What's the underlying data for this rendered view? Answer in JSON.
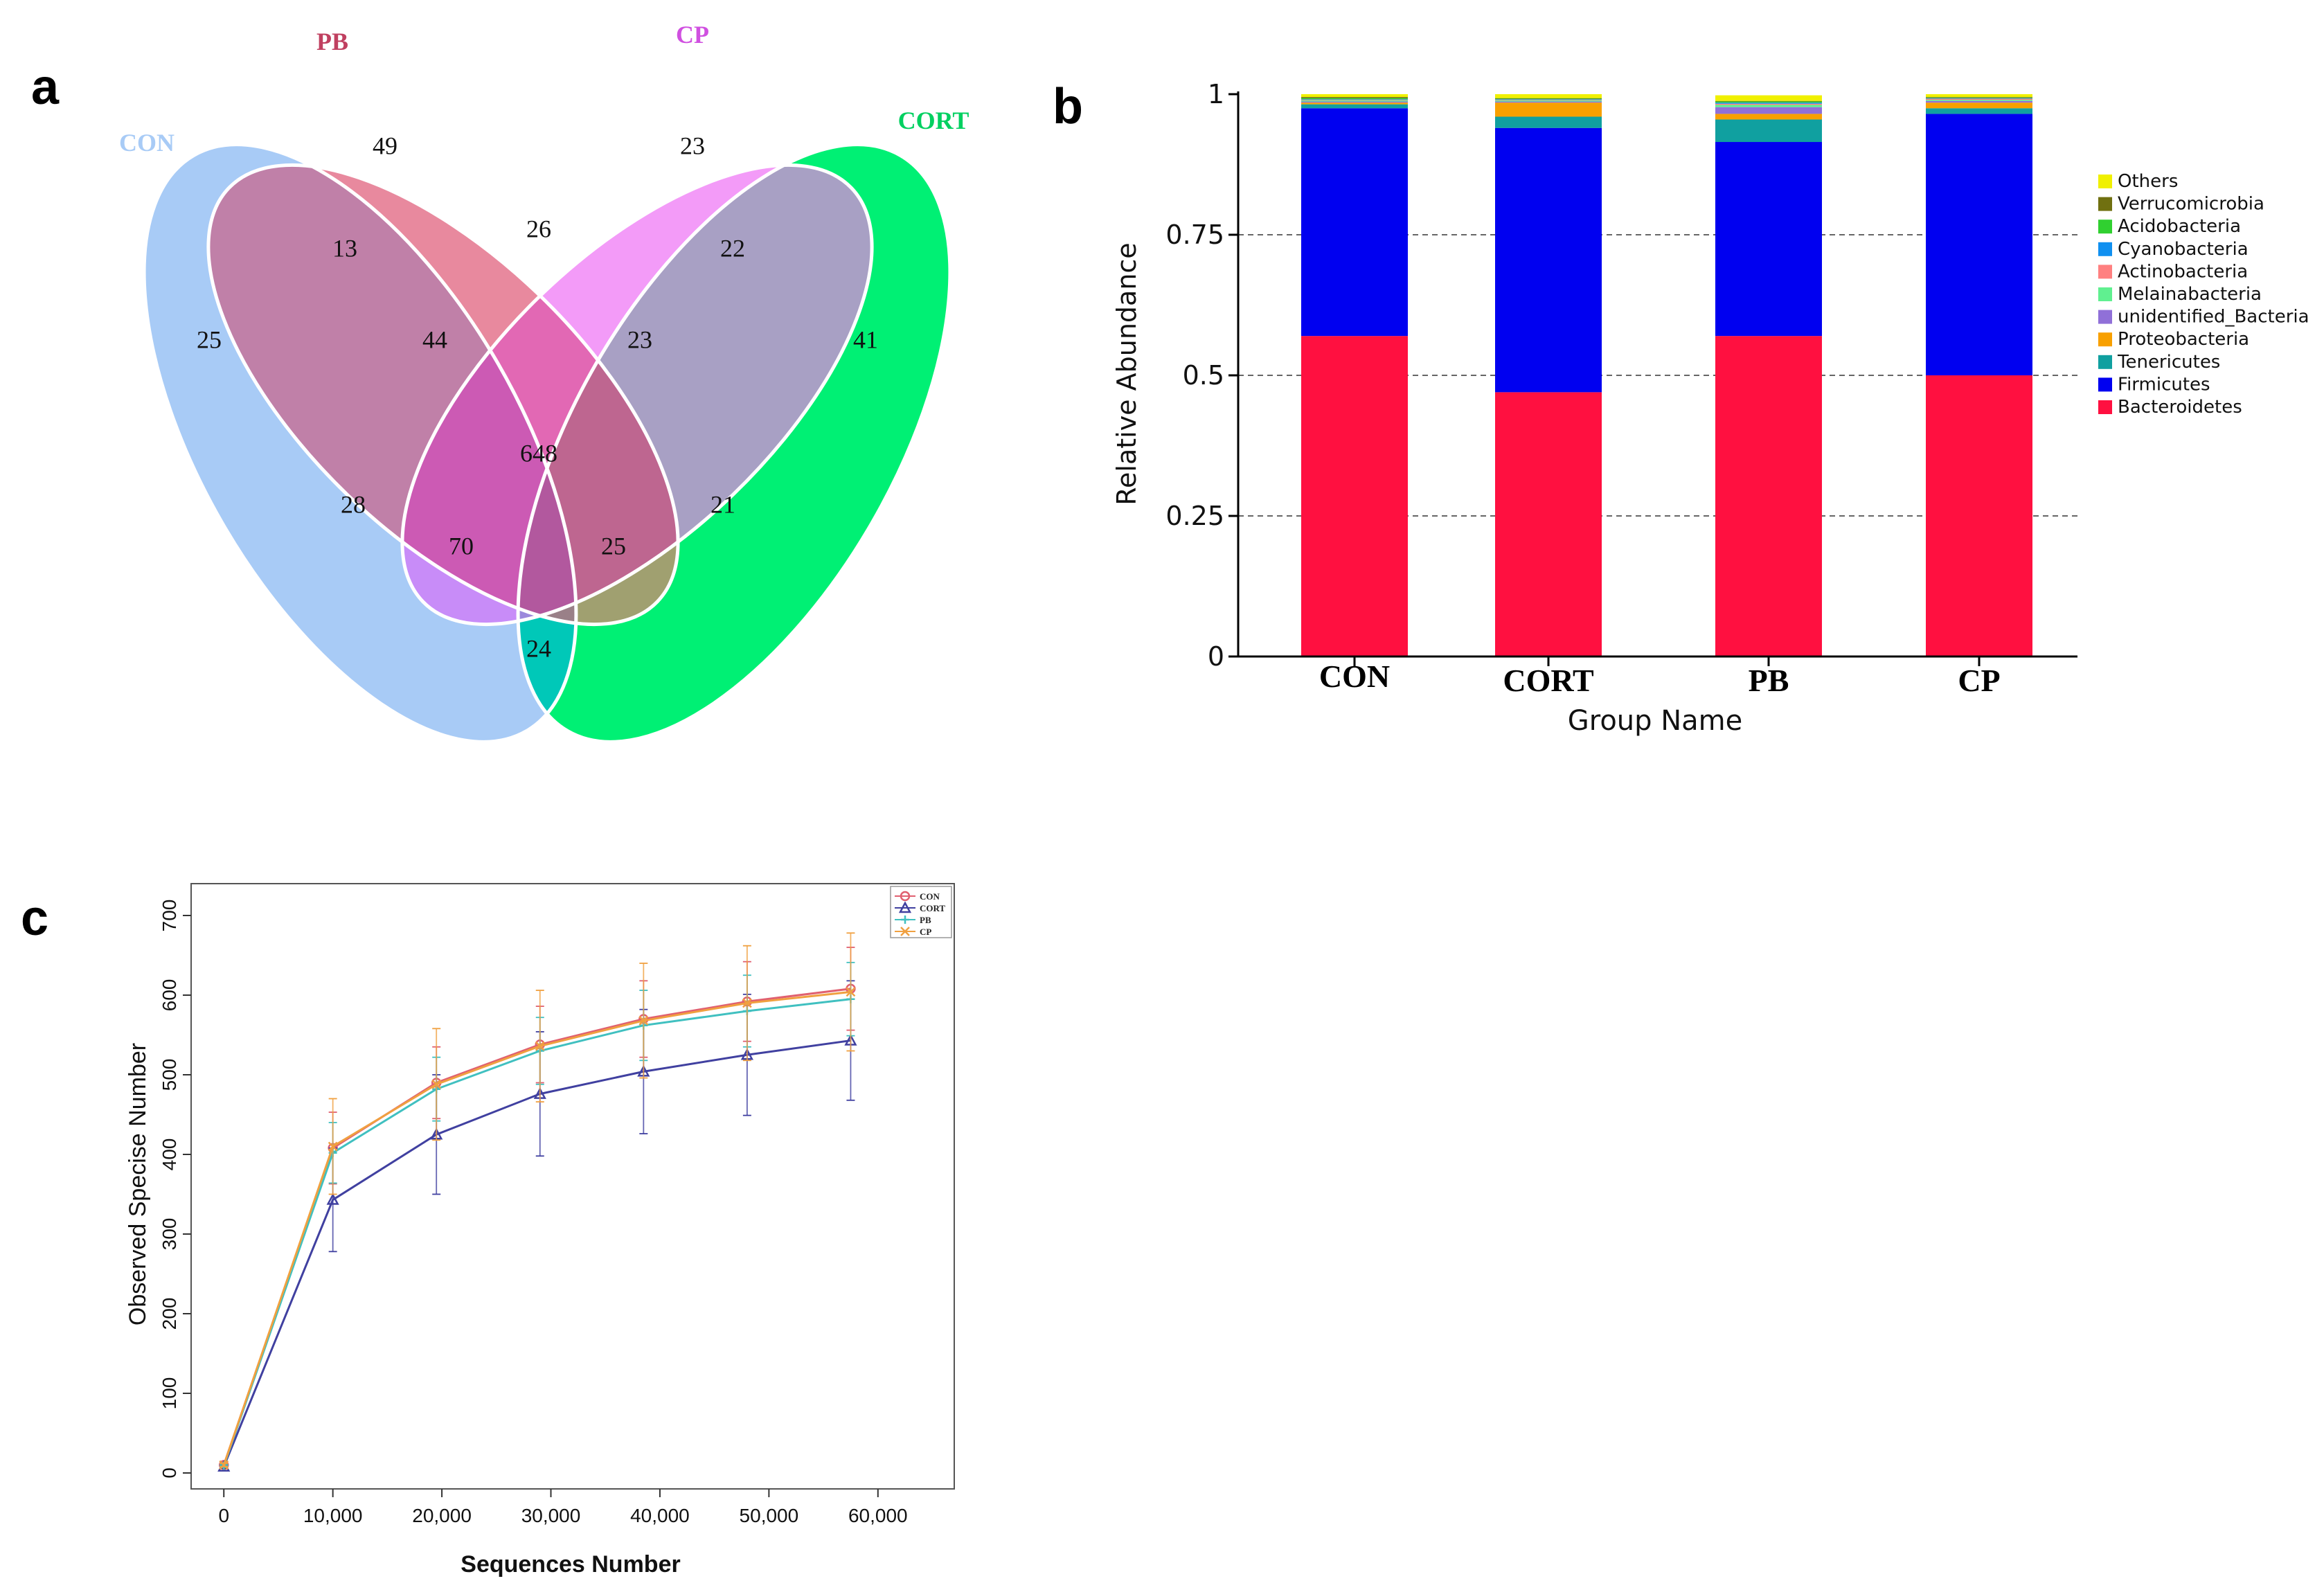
{
  "panels": {
    "a": "a",
    "b": "b",
    "c": "c"
  },
  "chart_data": [
    {
      "type": "venn",
      "title": "",
      "sets": [
        {
          "name": "CON",
          "color": "#9FC6F5"
        },
        {
          "name": "PB",
          "color": "#E8899E"
        },
        {
          "name": "CP",
          "color": "#F090F8"
        },
        {
          "name": "CORT",
          "color": "#00F074"
        }
      ],
      "regions": [
        {
          "sets": [
            "CON"
          ],
          "count": "25"
        },
        {
          "sets": [
            "PB"
          ],
          "count": "49"
        },
        {
          "sets": [
            "CP"
          ],
          "count": "23"
        },
        {
          "sets": [
            "CORT"
          ],
          "count": "41"
        },
        {
          "sets": [
            "CON",
            "PB"
          ],
          "count": "13"
        },
        {
          "sets": [
            "PB",
            "CP"
          ],
          "count": "26"
        },
        {
          "sets": [
            "CP",
            "CORT"
          ],
          "count": "22"
        },
        {
          "sets": [
            "CON",
            "PB",
            "CP"
          ],
          "count": "44"
        },
        {
          "sets": [
            "PB",
            "CP",
            "CORT"
          ],
          "count": "23"
        },
        {
          "sets": [
            "CON",
            "CP"
          ],
          "count": "28"
        },
        {
          "sets": [
            "CON",
            "PB",
            "CP",
            "CORT"
          ],
          "count": "648"
        },
        {
          "sets": [
            "PB",
            "CORT"
          ],
          "count": "21"
        },
        {
          "sets": [
            "CON",
            "CP",
            "CORT"
          ],
          "count": "70"
        },
        {
          "sets": [
            "CON",
            "PB",
            "CORT"
          ],
          "count": "25"
        },
        {
          "sets": [
            "CON",
            "CORT"
          ],
          "count": "24"
        }
      ]
    },
    {
      "type": "bar",
      "stacked": true,
      "categories": [
        "CON",
        "CORT",
        "PB",
        "CP"
      ],
      "xlabel": "Group Name",
      "ylabel": "Relative Abundance",
      "ylim": [
        0,
        1
      ],
      "yticks": [
        "0",
        "0.25",
        "0.5",
        "0.75",
        "1"
      ],
      "grid": "dashed horizontal",
      "legend_position": "right",
      "series": [
        {
          "name": "Bacteroidetes",
          "color": "#FF1040",
          "values": [
            0.57,
            0.47,
            0.57,
            0.5
          ]
        },
        {
          "name": "Firmicutes",
          "color": "#0000F0",
          "values": [
            0.405,
            0.47,
            0.345,
            0.465
          ]
        },
        {
          "name": "Tenericutes",
          "color": "#10A0A0",
          "values": [
            0.007,
            0.02,
            0.04,
            0.01
          ]
        },
        {
          "name": "Proteobacteria",
          "color": "#F8A000",
          "values": [
            0.003,
            0.025,
            0.01,
            0.01
          ]
        },
        {
          "name": "unidentified_Bacteria",
          "color": "#9070D8",
          "values": [
            0.002,
            0.002,
            0.012,
            0.003
          ]
        },
        {
          "name": "Melainabacteria",
          "color": "#60F090",
          "values": [
            0.002,
            0.002,
            0.004,
            0.002
          ]
        },
        {
          "name": "Actinobacteria",
          "color": "#FF8080",
          "values": [
            0.001,
            0.001,
            0.002,
            0.002
          ]
        },
        {
          "name": "Cyanobacteria",
          "color": "#1090F0",
          "values": [
            0.001,
            0.001,
            0.002,
            0.001
          ]
        },
        {
          "name": "Acidobacteria",
          "color": "#30D030",
          "values": [
            0.002,
            0.001,
            0.002,
            0.001
          ]
        },
        {
          "name": "Verrucomicrobia",
          "color": "#707010",
          "values": [
            0.002,
            0.001,
            0.001,
            0.001
          ]
        },
        {
          "name": "Others",
          "color": "#F0F000",
          "values": [
            0.005,
            0.008,
            0.01,
            0.005
          ]
        }
      ],
      "legend_order": [
        "Others",
        "Verrucomicrobia",
        "Acidobacteria",
        "Cyanobacteria",
        "Actinobacteria",
        "Melainabacteria",
        "unidentified_Bacteria",
        "Proteobacteria",
        "Tenericutes",
        "Firmicutes",
        "Bacteroidetes"
      ]
    },
    {
      "type": "line",
      "title": "",
      "xlabel": "Sequences Number",
      "ylabel": "Observed Specise Number",
      "xlim": [
        -3000,
        67000
      ],
      "ylim": [
        -20,
        740
      ],
      "xticks": [
        0,
        10000,
        20000,
        30000,
        40000,
        50000,
        60000
      ],
      "xtick_labels": [
        "0",
        "10,000",
        "20,000",
        "30,000",
        "40,000",
        "50,000",
        "60,000"
      ],
      "yticks": [
        0,
        100,
        200,
        300,
        400,
        500,
        600,
        700
      ],
      "ytick_labels": [
        "0",
        "100",
        "200",
        "300",
        "400",
        "500",
        "600",
        "700"
      ],
      "legend_position": "top-right",
      "x": [
        0,
        10000,
        19500,
        29000,
        38500,
        48000,
        57500
      ],
      "series": [
        {
          "name": "CON",
          "color": "#E06070",
          "marker": "circle",
          "values": [
            10,
            408,
            490,
            538,
            570,
            592,
            608
          ],
          "err": [
            2,
            45,
            45,
            48,
            48,
            50,
            52
          ]
        },
        {
          "name": "CORT",
          "color": "#4040A0",
          "marker": "triangle",
          "values": [
            8,
            343,
            425,
            476,
            504,
            525,
            543
          ],
          "err": [
            2,
            65,
            75,
            78,
            78,
            76,
            75
          ]
        },
        {
          "name": "PB",
          "color": "#40C0C0",
          "marker": "plus",
          "values": [
            9,
            402,
            482,
            530,
            562,
            580,
            595
          ],
          "err": [
            2,
            38,
            40,
            42,
            44,
            45,
            46
          ]
        },
        {
          "name": "CP",
          "color": "#F0A040",
          "marker": "x",
          "values": [
            10,
            410,
            488,
            536,
            568,
            590,
            604
          ],
          "err": [
            2,
            60,
            70,
            70,
            72,
            72,
            74
          ]
        }
      ]
    }
  ]
}
